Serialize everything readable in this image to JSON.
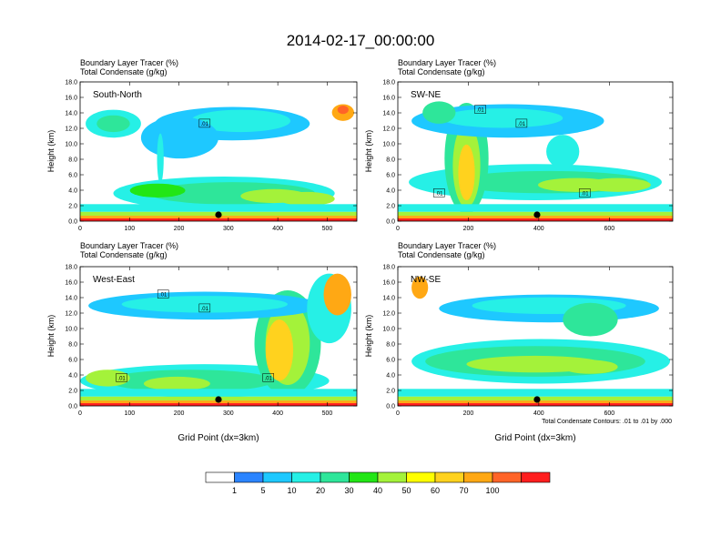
{
  "title": "2014-02-17_00:00:00",
  "footnote": "Total Condensate Contours: .01 to .01 by .000",
  "colorbar": {
    "colors": [
      "#ffffff",
      "#2b84ff",
      "#1ec8ff",
      "#26f0e6",
      "#2ee69a",
      "#22e616",
      "#a4f23a",
      "#ffff00",
      "#ffd21e",
      "#ffa814",
      "#ff6428",
      "#ff1e1e"
    ],
    "labels": [
      "1",
      "5",
      "10",
      "20",
      "30",
      "40",
      "50",
      "60",
      "70",
      "100"
    ]
  },
  "chart_data": [
    {
      "type": "heatmap",
      "panel_label": "South-North",
      "subtitle1": "Boundary Layer Tracer   (%)",
      "subtitle2": "Total Condensate   (g/kg)",
      "ylabel": "Height (km)",
      "xlabel": "",
      "xlim": [
        0,
        560
      ],
      "ylim": [
        0,
        18
      ],
      "xticks": [
        0,
        100,
        200,
        300,
        400,
        500
      ],
      "yticks": [
        "0.0",
        "2.0",
        "4.0",
        "6.0",
        "8.0",
        "10.0",
        "12.0",
        "14.0",
        "16.0",
        "18.0"
      ],
      "contour_labels": [
        ".01"
      ],
      "marker_x": 280
    },
    {
      "type": "heatmap",
      "panel_label": "SW-NE",
      "subtitle1": "Boundary Layer Tracer   (%)",
      "subtitle2": "Total Condensate   (g/kg)",
      "ylabel": "Height (km)",
      "xlabel": "",
      "xlim": [
        0,
        780
      ],
      "ylim": [
        0,
        18
      ],
      "xticks": [
        0,
        200,
        400,
        600
      ],
      "yticks": [
        "0.0",
        "2.0",
        "4.0",
        "6.0",
        "8.0",
        "10.0",
        "12.0",
        "14.0",
        "16.0",
        "18.0"
      ],
      "contour_labels": [
        ".01",
        ".01",
        ".01",
        ".01"
      ],
      "marker_x": 395
    },
    {
      "type": "heatmap",
      "panel_label": "West-East",
      "subtitle1": "Boundary Layer Tracer   (%)",
      "subtitle2": "Total Condensate   (g/kg)",
      "ylabel": "Height (km)",
      "xlabel": "Grid Point (dx=3km)",
      "xlim": [
        0,
        560
      ],
      "ylim": [
        0,
        18
      ],
      "xticks": [
        0,
        100,
        200,
        300,
        400,
        500
      ],
      "yticks": [
        "0.0",
        "2.0",
        "4.0",
        "6.0",
        "8.0",
        "10.0",
        "12.0",
        "14.0",
        "16.0",
        "18.0"
      ],
      "contour_labels": [
        ".01",
        ".01",
        ".01",
        ".01"
      ],
      "marker_x": 280
    },
    {
      "type": "heatmap",
      "panel_label": "NW-SE",
      "subtitle1": "Boundary Layer Tracer   (%)",
      "subtitle2": "Total Condensate   (g/kg)",
      "ylabel": "Height (km)",
      "xlabel": "Grid Point (dx=3km)",
      "xlim": [
        0,
        780
      ],
      "ylim": [
        0,
        18
      ],
      "xticks": [
        0,
        200,
        400,
        600
      ],
      "yticks": [
        "0.0",
        "2.0",
        "4.0",
        "6.0",
        "8.0",
        "10.0",
        "12.0",
        "14.0",
        "16.0",
        "18.0"
      ],
      "contour_labels": [],
      "marker_x": 395
    }
  ]
}
